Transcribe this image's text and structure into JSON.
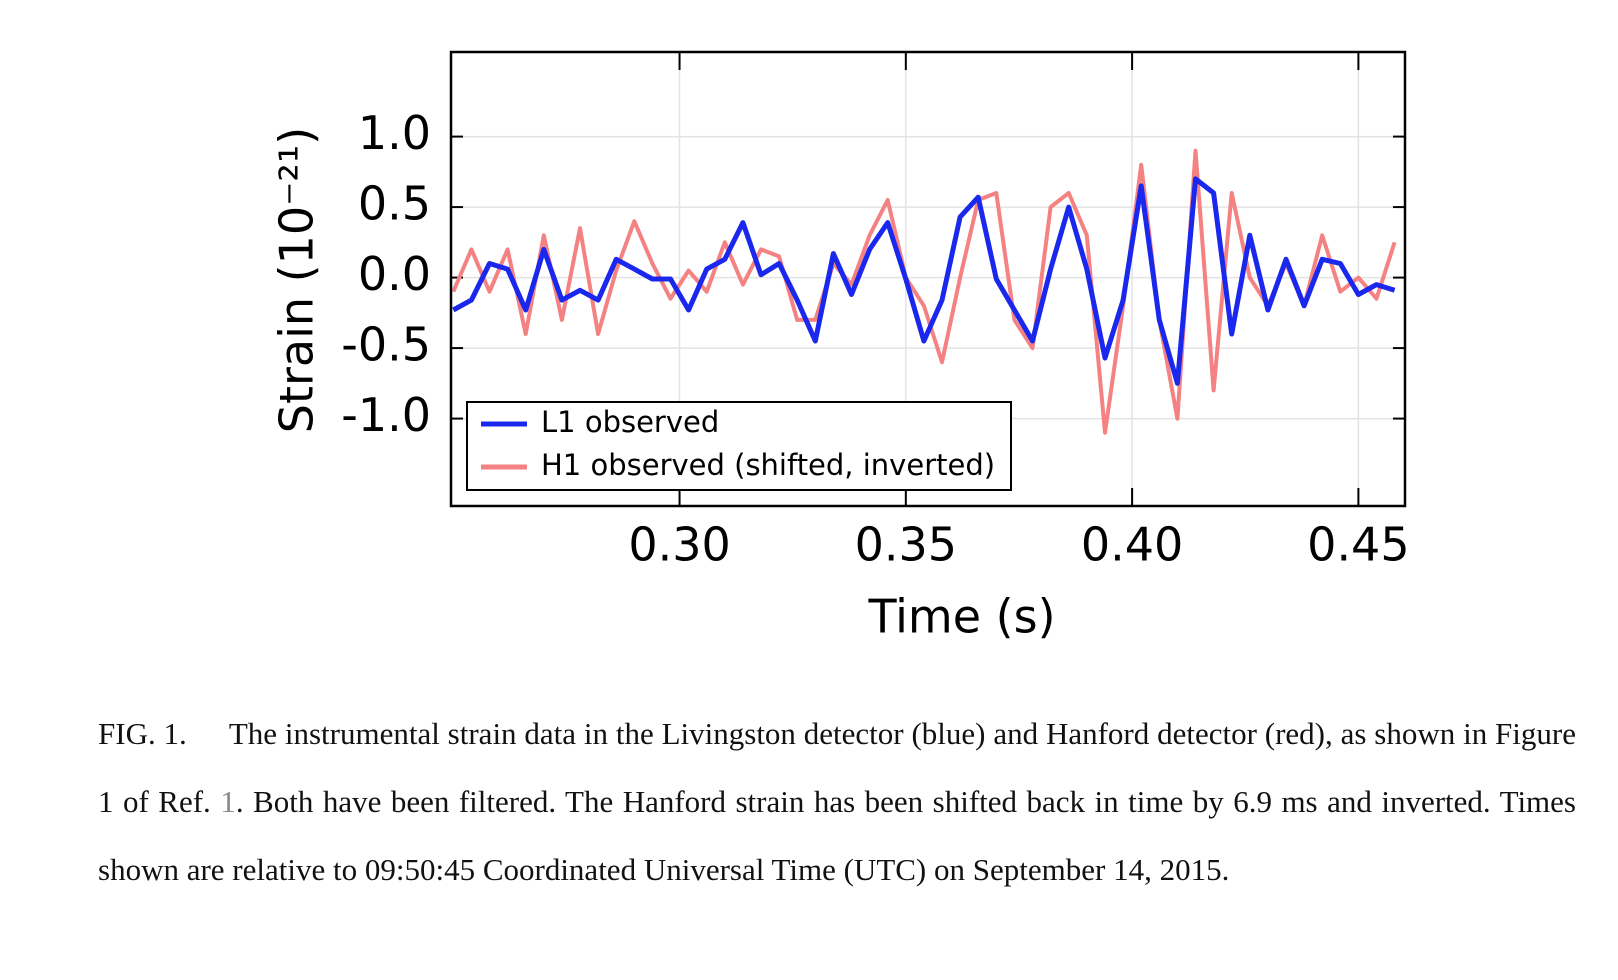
{
  "chart_data": {
    "type": "line",
    "xlabel": "Time (s)",
    "ylabel": "Strain (10⁻²¹)",
    "x": [
      0.25,
      0.254,
      0.258,
      0.262,
      0.266,
      0.27,
      0.274,
      0.278,
      0.282,
      0.286,
      0.29,
      0.294,
      0.298,
      0.302,
      0.306,
      0.31,
      0.314,
      0.318,
      0.322,
      0.326,
      0.33,
      0.334,
      0.338,
      0.342,
      0.346,
      0.35,
      0.354,
      0.358,
      0.362,
      0.366,
      0.37,
      0.374,
      0.378,
      0.382,
      0.386,
      0.39,
      0.394,
      0.398,
      0.402,
      0.406,
      0.41,
      0.414,
      0.418,
      0.422,
      0.426,
      0.43,
      0.434,
      0.438,
      0.442,
      0.446,
      0.45,
      0.454,
      0.458
    ],
    "series": [
      {
        "name": "L1 observed",
        "color": "#1a28ee",
        "values": [
          -0.23,
          -0.16,
          0.1,
          0.06,
          -0.23,
          0.2,
          -0.16,
          -0.09,
          -0.16,
          0.13,
          0.06,
          -0.01,
          -0.01,
          -0.23,
          0.06,
          0.13,
          0.39,
          0.02,
          0.1,
          -0.16,
          -0.45,
          0.17,
          -0.12,
          0.2,
          0.39,
          -0.01,
          -0.45,
          -0.16,
          0.43,
          0.57,
          -0.01,
          -0.23,
          -0.45,
          0.06,
          0.5,
          0.06,
          -0.57,
          -0.16,
          0.65,
          -0.3,
          -0.75,
          0.7,
          0.6,
          -0.4,
          0.3,
          -0.23,
          0.13,
          -0.2,
          0.13,
          0.1,
          -0.12,
          -0.05,
          -0.09
        ]
      },
      {
        "name": "H1 observed (shifted, inverted)",
        "color": "#f58282",
        "values": [
          -0.1,
          0.2,
          -0.1,
          0.2,
          -0.4,
          0.3,
          -0.3,
          0.35,
          -0.4,
          0.05,
          0.4,
          0.1,
          -0.15,
          0.05,
          -0.1,
          0.25,
          -0.05,
          0.2,
          0.15,
          -0.3,
          -0.3,
          0.1,
          -0.05,
          0.3,
          0.55,
          0.0,
          -0.2,
          -0.6,
          0.0,
          0.55,
          0.6,
          -0.3,
          -0.5,
          0.5,
          0.6,
          0.3,
          -1.1,
          -0.2,
          0.8,
          -0.3,
          -1.0,
          0.9,
          -0.8,
          0.6,
          0.0,
          -0.2,
          0.1,
          -0.2,
          0.3,
          -0.1,
          0.0,
          -0.15,
          0.25
        ]
      }
    ],
    "xlim": [
      0.2495,
      0.4603
    ],
    "xticks": [
      {
        "value": 0.3,
        "label": "0.30"
      },
      {
        "value": 0.35,
        "label": "0.35"
      },
      {
        "value": 0.4,
        "label": "0.40"
      },
      {
        "value": 0.45,
        "label": "0.45"
      }
    ],
    "ylim": [
      -1.62,
      1.6
    ],
    "yticks": [
      {
        "value": 1.0,
        "label": "1.0"
      },
      {
        "value": 0.5,
        "label": "0.5"
      },
      {
        "value": 0.0,
        "label": "0.0"
      },
      {
        "value": -0.5,
        "label": "-0.5"
      },
      {
        "value": -1.0,
        "label": "-1.0"
      }
    ],
    "grid": true,
    "legend": "lower left"
  },
  "caption": {
    "label": "FIG. 1.",
    "text_before": "The instrumental strain data in the Livingston detector (blue) and Hanford detector (red), as shown in Figure 1 of Ref.",
    "ref": "1",
    "text_after": ". Both have been filtered. The Hanford strain has been shifted back in time by 6.9 ms and inverted. Times shown are relative to 09:50:45 Coordinated Universal Time (UTC) on September 14, 2015."
  }
}
